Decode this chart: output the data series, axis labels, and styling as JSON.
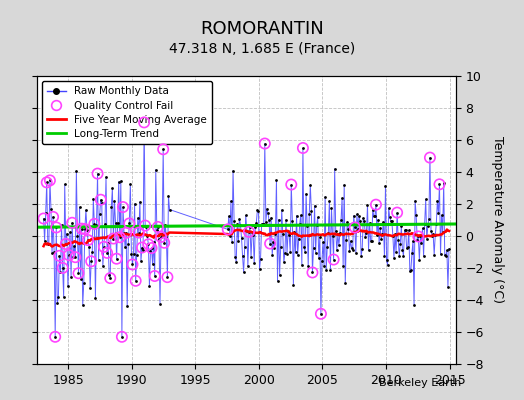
{
  "title": "ROMORANTIN",
  "subtitle": "47.318 N, 1.685 E (France)",
  "ylabel": "Temperature Anomaly (°C)",
  "credit": "Berkeley Earth",
  "ylim": [
    -8,
    10
  ],
  "yticks": [
    -8,
    -6,
    -4,
    -2,
    0,
    2,
    4,
    6,
    8,
    10
  ],
  "xlim": [
    1982.5,
    2015.5
  ],
  "xticks": [
    1985,
    1990,
    1995,
    2000,
    2005,
    2010,
    2015
  ],
  "start_year": 1983,
  "end_year": 2014,
  "bg_color": "#d8d8d8",
  "plot_bg_color": "#ffffff",
  "raw_color": "#4444ff",
  "ma_color": "#ff0000",
  "trend_color": "#00cc00",
  "qc_color": "#ff44ff",
  "title_fontsize": 13,
  "subtitle_fontsize": 10,
  "label_fontsize": 9,
  "tick_fontsize": 9,
  "gap_start": 1993.0,
  "gap_end": 1997.5
}
